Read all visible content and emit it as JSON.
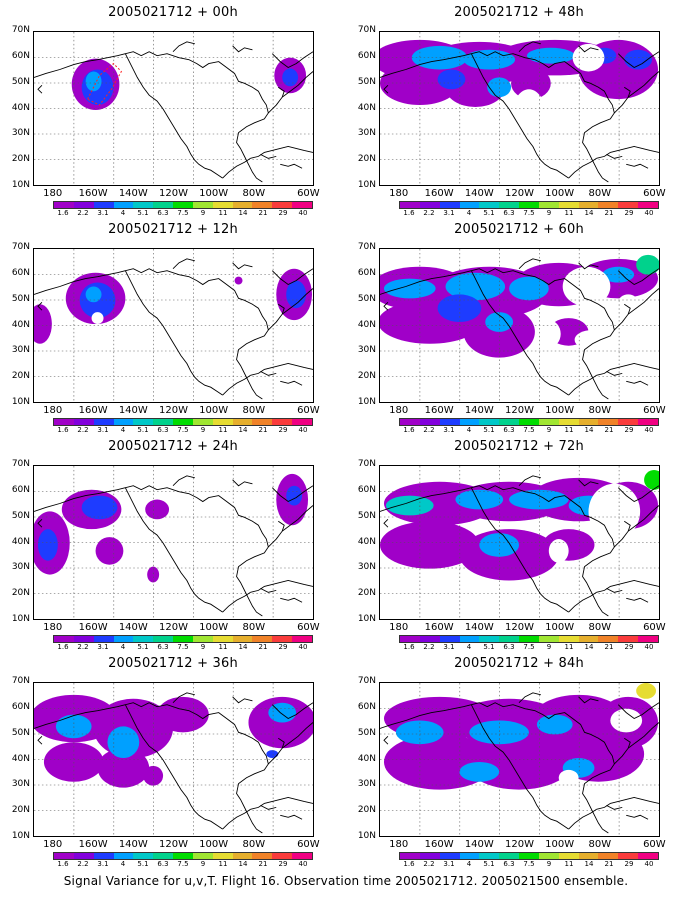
{
  "panels": [
    {
      "title": "2005021712 + 00h"
    },
    {
      "title": "2005021712 + 48h"
    },
    {
      "title": "2005021712 + 12h"
    },
    {
      "title": "2005021712 + 60h"
    },
    {
      "title": "2005021712 + 24h"
    },
    {
      "title": "2005021712 + 72h"
    },
    {
      "title": "2005021712 + 36h"
    },
    {
      "title": "2005021712 + 84h"
    }
  ],
  "axis": {
    "y_ticks": [
      "70N",
      "60N",
      "50N",
      "40N",
      "30N",
      "20N",
      "10N"
    ],
    "x_ticks": [
      "180",
      "160W",
      "140W",
      "120W",
      "100W",
      "80W",
      "60W"
    ]
  },
  "colorbar": {
    "labels": [
      "1.6",
      "2.2",
      "3.1",
      "4",
      "5.1",
      "6.3",
      "7.5",
      "9",
      "11",
      "14",
      "21",
      "29",
      "40"
    ],
    "colors": [
      "#a000c8",
      "#8200dc",
      "#1e3cff",
      "#00a0ff",
      "#00c8c8",
      "#00d28c",
      "#00dc00",
      "#a0e632",
      "#e6dc32",
      "#e6af2d",
      "#f08228",
      "#fa3c3c",
      "#f00082"
    ]
  },
  "caption": "Signal Variance for u,v,T. Flight 16. Observation time 2005021712. 2005021500 ensemble."
}
